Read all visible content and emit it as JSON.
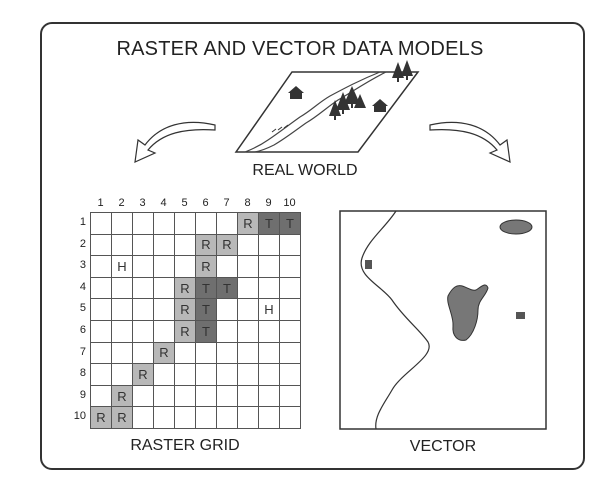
{
  "title": "RASTER AND VECTOR DATA MODELS",
  "real_world_label": "REAL WORLD",
  "raster_label": "RASTER GRID",
  "vector_label": "VECTOR",
  "columns": [
    "1",
    "2",
    "3",
    "4",
    "5",
    "6",
    "7",
    "8",
    "9",
    "10"
  ],
  "rows": [
    "1",
    "2",
    "3",
    "4",
    "5",
    "6",
    "7",
    "8",
    "9",
    "10"
  ],
  "cells": [
    [
      "",
      "",
      "",
      "",
      "",
      "",
      "",
      "R",
      "T",
      "T"
    ],
    [
      "",
      "",
      "",
      "",
      "",
      "R",
      "R",
      "",
      "",
      ""
    ],
    [
      "",
      "H",
      "",
      "",
      "",
      "R",
      "",
      "",
      "",
      ""
    ],
    [
      "",
      "",
      "",
      "",
      "R",
      "T",
      "T",
      "",
      "",
      ""
    ],
    [
      "",
      "",
      "",
      "",
      "R",
      "T",
      "",
      "",
      "H",
      ""
    ],
    [
      "",
      "",
      "",
      "",
      "R",
      "T",
      "",
      "",
      "",
      ""
    ],
    [
      "",
      "",
      "",
      "R",
      "",
      "",
      "",
      "",
      "",
      ""
    ],
    [
      "",
      "",
      "R",
      "",
      "",
      "",
      "",
      "",
      "",
      ""
    ],
    [
      "",
      "R",
      "",
      "",
      "",
      "",
      "",
      "",
      "",
      ""
    ],
    [
      "R",
      "R",
      "",
      "",
      "",
      "",
      "",
      "",
      "",
      ""
    ]
  ],
  "colors": {
    "river_cell": "#b8b8b8",
    "tree_cell": "#6f6f6f",
    "house_cell": "#ffffff",
    "empty_cell": "#ffffff",
    "vector_fill": "#777777"
  }
}
